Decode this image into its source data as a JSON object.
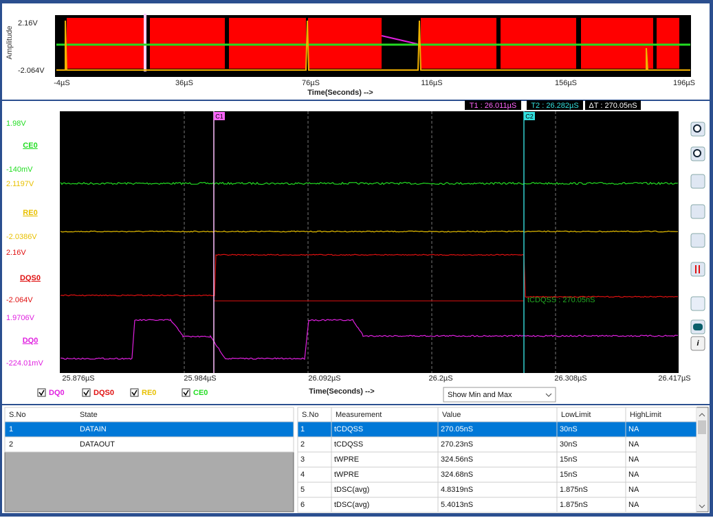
{
  "overview": {
    "y_axis_title": "Amplitude",
    "y_max": "2.16V",
    "y_min": "-2.064V",
    "x_ticks": [
      "-4µS",
      "36µS",
      "76µS",
      "116µS",
      "156µS",
      "196µS"
    ],
    "x_axis_title": "Time(Seconds) -->"
  },
  "cursors": {
    "t1": "T1 : 26.011µS",
    "t2": "T2 : 26.282µS",
    "dt": "ΔT : 270.05nS",
    "c1": "C1",
    "c2": "C2"
  },
  "channels": [
    {
      "scale_max": "1.98V",
      "name": "CE0",
      "scale_min": "-140mV"
    },
    {
      "scale_max": "2.1197V",
      "name": "RE0",
      "scale_min": "-2.0386V"
    },
    {
      "scale_max": "2.16V",
      "name": "DQS0",
      "scale_min": "-2.064V"
    },
    {
      "scale_max": "1.9706V",
      "name": "DQ0",
      "scale_min": "-224.01mV"
    }
  ],
  "annotation": "tCDQSS : 270.05nS",
  "main_x_ticks": [
    "25.876µS",
    "25.984µS",
    "26.092µS",
    "26.2µS",
    "26.308µS",
    "26.417µS"
  ],
  "main_x_axis_title": "Time(Seconds) -->",
  "checkboxes": [
    "DQ0",
    "DQS0",
    "RE0",
    "CE0"
  ],
  "dropdown": "Show Min and Max",
  "state_table": {
    "headers": [
      "S.No",
      "State"
    ],
    "rows": [
      [
        "1",
        "DATAIN"
      ],
      [
        "2",
        "DATAOUT"
      ]
    ]
  },
  "measurement_table": {
    "headers": [
      "S.No",
      "Measurement",
      "Value",
      "LowLimit",
      "HighLimit"
    ],
    "rows": [
      [
        "1",
        "tCDQSS",
        "270.05nS",
        "30nS",
        "NA"
      ],
      [
        "2",
        "tCDQSS",
        "270.23nS",
        "30nS",
        "NA"
      ],
      [
        "3",
        "tWPRE",
        "324.56nS",
        "15nS",
        "NA"
      ],
      [
        "4",
        "tWPRE",
        "324.68nS",
        "15nS",
        "NA"
      ],
      [
        "5",
        "tDSC(avg)",
        "4.8319nS",
        "1.875nS",
        "NA"
      ],
      [
        "6",
        "tDSC(avg)",
        "5.4013nS",
        "1.875nS",
        "NA"
      ]
    ]
  }
}
